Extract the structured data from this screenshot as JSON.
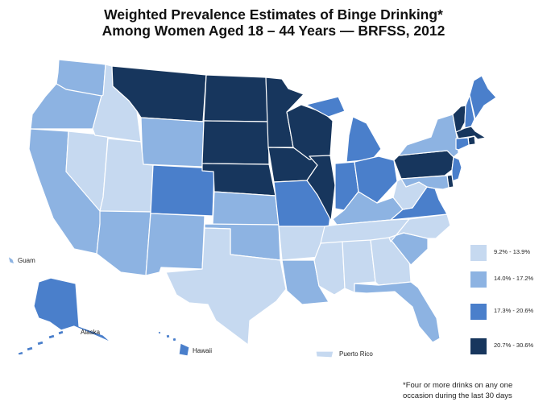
{
  "title": {
    "line1": "Weighted Prevalence Estimates of Binge Drinking*",
    "line2": "Among Women Aged 18 – 44 Years — BRFSS, 2012"
  },
  "colors": {
    "c1": "#c6d9f0",
    "c2": "#8db3e2",
    "c3": "#4a7fcb",
    "c4": "#17365d",
    "border": "#ffffff"
  },
  "legend": [
    {
      "range": "9.2% - 13.9%",
      "cls": 1
    },
    {
      "range": "14.0% - 17.2%",
      "cls": 2
    },
    {
      "range": "17.3% - 20.6%",
      "cls": 3
    },
    {
      "range": "20.7% - 30.6%",
      "cls": 4
    }
  ],
  "state_classes": {
    "WA": 2,
    "OR": 2,
    "CA": 2,
    "NV": 1,
    "ID": 1,
    "MT": 4,
    "WY": 2,
    "UT": 1,
    "AZ": 2,
    "CO": 3,
    "NM": 2,
    "ND": 4,
    "SD": 4,
    "NE": 4,
    "KS": 2,
    "OK": 2,
    "TX": 1,
    "MN": 4,
    "IA": 4,
    "MO": 3,
    "AR": 1,
    "LA": 2,
    "WI": 4,
    "IL": 4,
    "MI": 3,
    "IN": 3,
    "OH": 3,
    "KY": 2,
    "TN": 1,
    "MS": 1,
    "AL": 1,
    "GA": 1,
    "FL": 2,
    "SC": 2,
    "NC": 1,
    "VA": 3,
    "WV": 1,
    "PA": 4,
    "NY": 2,
    "VT": 4,
    "NH": 3,
    "ME": 3,
    "MA": 4,
    "RI": 4,
    "CT": 3,
    "NJ": 3,
    "DE": 4,
    "MD": 2,
    "AK": 3,
    "HI": 3,
    "GU": 2,
    "PR": 1
  },
  "territory_labels": {
    "guam": "Guam",
    "alaska": "Alaska",
    "hawaii": "Hawaii",
    "puerto_rico": "Puerto Rico"
  },
  "footnote": "*Four or more drinks on any one occasion during the last 30 days"
}
